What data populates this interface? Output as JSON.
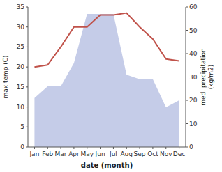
{
  "chart_data": {
    "type": "line",
    "categories": [
      "Jan",
      "Feb",
      "Mar",
      "Apr",
      "May",
      "Jun",
      "Jul",
      "Aug",
      "Sep",
      "Oct",
      "Nov",
      "Dec"
    ],
    "xlabel": "date (month)",
    "ylabel": "max temp (C)",
    "y2label": "med. precipitation\n(kg/m2)",
    "ylim": [
      0,
      35
    ],
    "yticks": [
      0,
      5,
      10,
      15,
      20,
      25,
      30,
      35
    ],
    "y2lim": [
      0,
      60
    ],
    "y2ticks": [
      0,
      10,
      20,
      30,
      40,
      50,
      60
    ],
    "grid": false,
    "series": [
      {
        "type": "area",
        "axis": "y2",
        "color": "#c5cce8",
        "values": [
          21,
          26,
          26,
          36,
          57,
          57,
          57,
          31,
          29,
          29,
          17,
          20
        ]
      },
      {
        "type": "line",
        "color": "#c0524a",
        "values": [
          20,
          20.5,
          25,
          30,
          30,
          33,
          33,
          33.5,
          30,
          27,
          22,
          21.5
        ]
      }
    ]
  }
}
